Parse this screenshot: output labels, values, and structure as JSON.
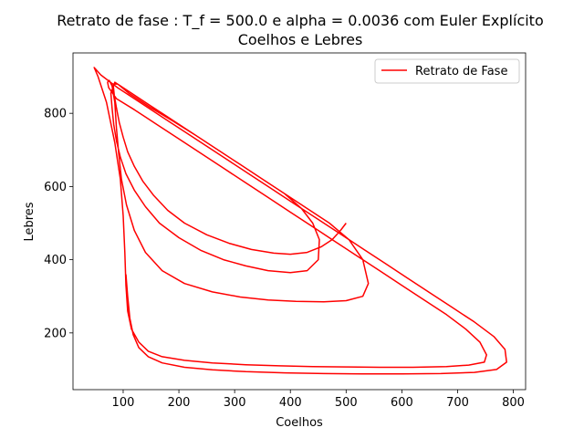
{
  "chart_data": {
    "type": "line",
    "title": "Retrato de fase : T_f = 500.0 e alpha = 0.0036 com Euler Explícito",
    "subtitle": "Coelhos e Lebres",
    "xlabel": "Coelhos",
    "ylabel": "Lebres",
    "xlim": [
      10,
      822
    ],
    "ylim": [
      45,
      965
    ],
    "xticks": [
      100,
      200,
      300,
      400,
      500,
      600,
      700,
      800
    ],
    "yticks": [
      200,
      400,
      600,
      800
    ],
    "grid": false,
    "legend_position": "top-right",
    "series": [
      {
        "name": "Retrato de Fase",
        "color": "#ff0000",
        "x": [
          500,
          490,
          475,
          455,
          430,
          400,
          370,
          330,
          290,
          250,
          210,
          180,
          155,
          135,
          120,
          108,
          100,
          93,
          88,
          84,
          82,
          90,
          110,
          150,
          190,
          230,
          270,
          310,
          350,
          390,
          420,
          440,
          452,
          450,
          430,
          400,
          360,
          320,
          280,
          240,
          200,
          165,
          140,
          120,
          105,
          95,
          88,
          83,
          80,
          78,
          85,
          110,
          150,
          190,
          230,
          270,
          310,
          350,
          390,
          430,
          470,
          505,
          530,
          540,
          530,
          500,
          460,
          410,
          360,
          310,
          260,
          210,
          170,
          140,
          120,
          106,
          97,
          92,
          88,
          85,
          80,
          75,
          72,
          74,
          88,
          120,
          160,
          200,
          240,
          280,
          320,
          360,
          400,
          440,
          480,
          520,
          560,
          600,
          640,
          680,
          715,
          740,
          752,
          748,
          720,
          680,
          620,
          560,
          500,
          440,
          380,
          320,
          260,
          210,
          170,
          145,
          128,
          115,
          108,
          105,
          103,
          100,
          95,
          85,
          70,
          55,
          48,
          60,
          90,
          130,
          170,
          210,
          250,
          290,
          330,
          370,
          410,
          450,
          490,
          530,
          570,
          610,
          650,
          690,
          730,
          765,
          785,
          788,
          770,
          730,
          670,
          600,
          530,
          460,
          390,
          320,
          260,
          210,
          170,
          145,
          128,
          118,
          112,
          108,
          105
        ],
        "y": [
          500,
          480,
          455,
          435,
          420,
          415,
          418,
          428,
          445,
          468,
          500,
          535,
          575,
          615,
          655,
          695,
          735,
          775,
          815,
          850,
          880,
          880,
          855,
          815,
          778,
          740,
          700,
          660,
          620,
          580,
          540,
          500,
          455,
          400,
          370,
          365,
          370,
          383,
          400,
          425,
          460,
          500,
          545,
          590,
          635,
          680,
          725,
          770,
          815,
          855,
          885,
          860,
          820,
          780,
          740,
          700,
          660,
          620,
          580,
          540,
          500,
          455,
          400,
          335,
          300,
          288,
          285,
          286,
          290,
          298,
          312,
          335,
          370,
          420,
          480,
          550,
          620,
          690,
          760,
          830,
          875,
          890,
          885,
          870,
          840,
          810,
          770,
          730,
          690,
          650,
          610,
          570,
          530,
          490,
          450,
          410,
          370,
          330,
          290,
          250,
          210,
          175,
          140,
          120,
          112,
          108,
          106,
          106,
          107,
          108,
          110,
          113,
          118,
          125,
          135,
          150,
          175,
          210,
          260,
          330,
          420,
          520,
          620,
          720,
          830,
          900,
          925,
          905,
          870,
          830,
          790,
          750,
          710,
          670,
          630,
          590,
          550,
          510,
          470,
          430,
          390,
          350,
          310,
          270,
          230,
          190,
          155,
          120,
          100,
          92,
          89,
          88,
          88,
          89,
          91,
          94,
          99,
          106,
          118,
          135,
          160,
          195,
          240,
          300,
          360
        ]
      }
    ]
  }
}
